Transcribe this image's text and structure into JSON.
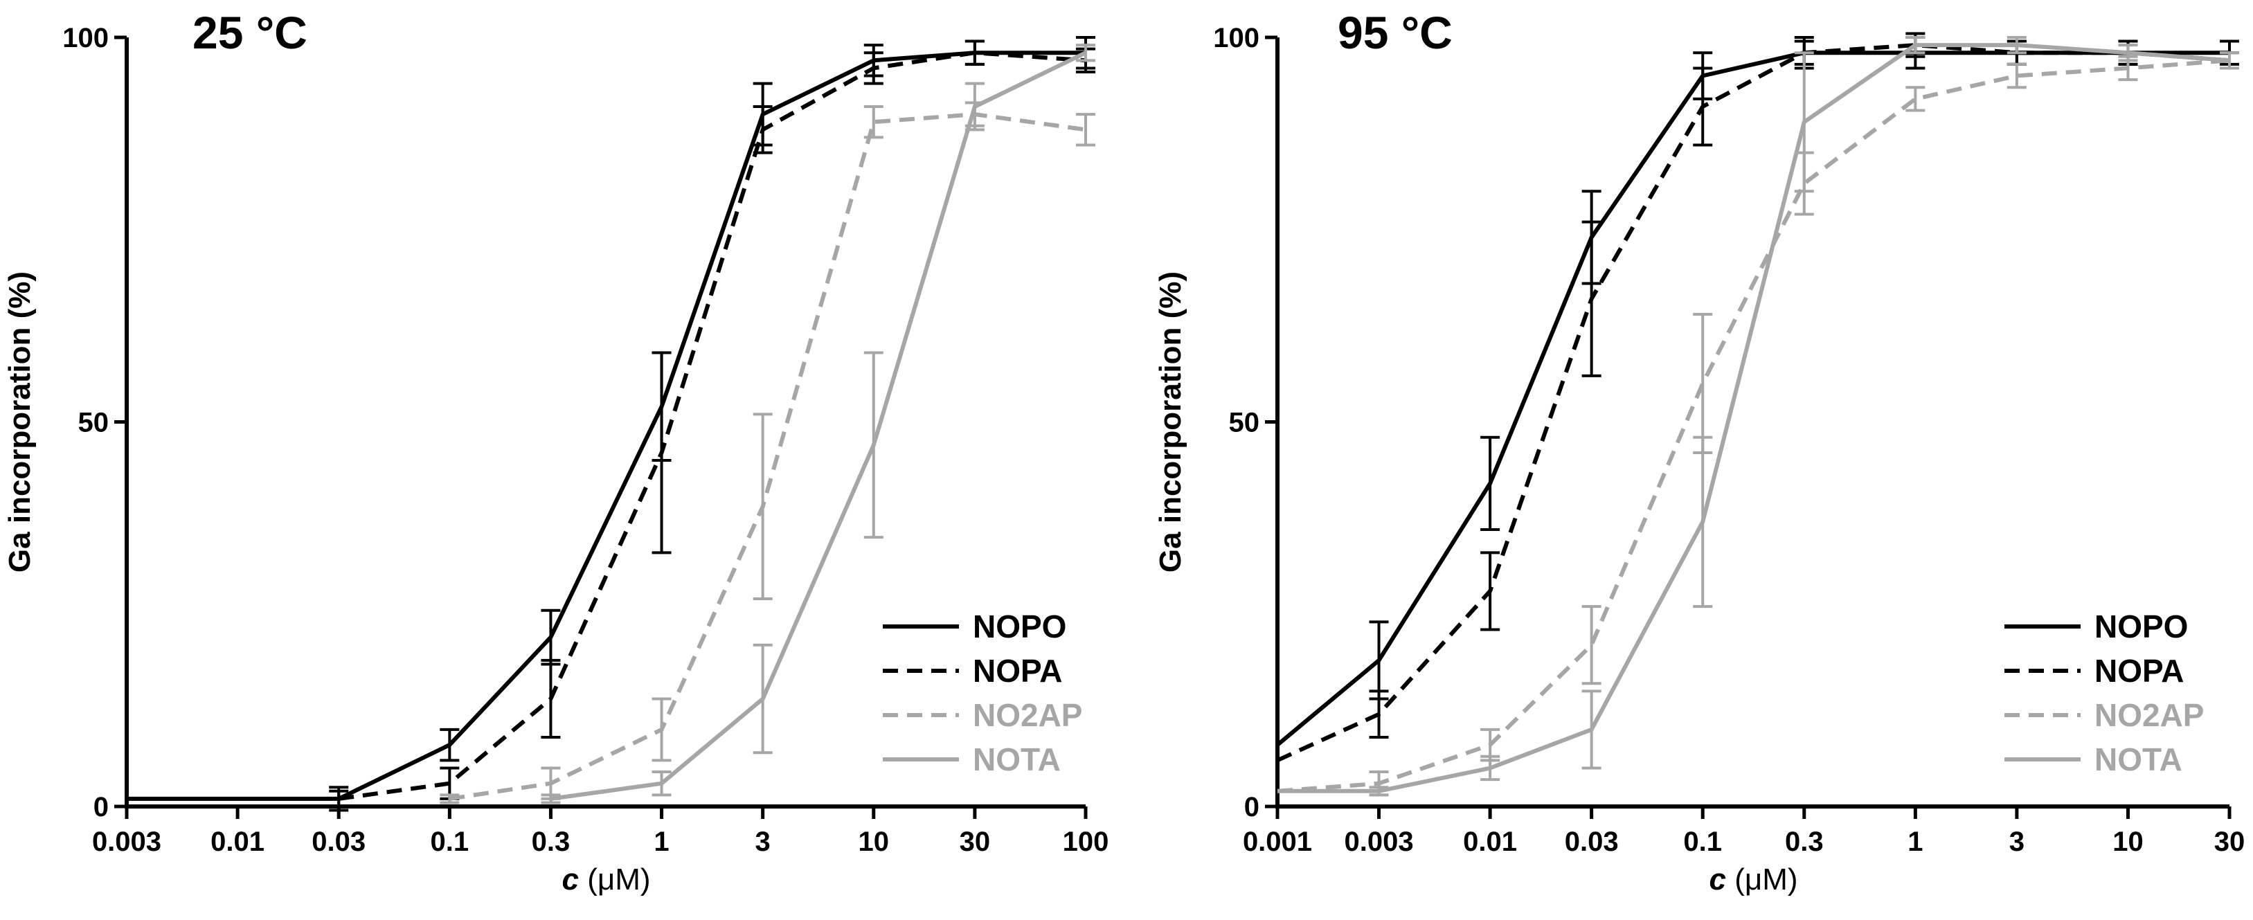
{
  "figure": {
    "colors": {
      "black": "#000000",
      "gray": "#a6a6a6"
    }
  },
  "chart_data": [
    {
      "type": "line",
      "title": "25 °C",
      "xlabel_italic": "c",
      "xlabel_rest": " (μM)",
      "ylabel": "Ga incorporation (%)",
      "xscale": "log",
      "xlim": [
        0.003,
        100
      ],
      "ylim": [
        0,
        100
      ],
      "xticks": [
        0.003,
        0.01,
        0.03,
        0.1,
        0.3,
        1,
        3,
        10,
        30,
        100
      ],
      "xtick_labels": [
        "0.003",
        "0.01",
        "0.03",
        "0.1",
        "0.3",
        "1",
        "3",
        "10",
        "30",
        "100"
      ],
      "yticks": [
        0,
        50,
        100
      ],
      "ytick_labels": [
        "0",
        "50",
        "100"
      ],
      "legend_position": "bottom-right",
      "series": [
        {
          "name": "NOPO",
          "color": "#000000",
          "dash": "solid",
          "x": [
            0.003,
            0.03,
            0.1,
            0.3,
            1,
            3,
            10,
            30,
            100
          ],
          "y": [
            1,
            1,
            8,
            22,
            52,
            90,
            97,
            98,
            98
          ],
          "err": [
            0,
            1.5,
            2,
            3.5,
            7,
            4,
            2,
            1.5,
            2
          ]
        },
        {
          "name": "NOPA",
          "color": "#000000",
          "dash": "dashed",
          "x": [
            0.03,
            0.1,
            0.3,
            1,
            3,
            10,
            30,
            100
          ],
          "y": [
            1,
            3,
            14,
            46,
            88,
            96,
            98,
            97
          ],
          "err": [
            1,
            2,
            5,
            13,
            3,
            2,
            1.5,
            1.5
          ]
        },
        {
          "name": "NO2AP",
          "color": "#a6a6a6",
          "dash": "dashed",
          "x": [
            0.1,
            0.3,
            1,
            3,
            10,
            30,
            100
          ],
          "y": [
            1,
            3,
            10,
            39,
            89,
            90,
            88
          ],
          "err": [
            0.5,
            2,
            4,
            12,
            2,
            1.5,
            2
          ]
        },
        {
          "name": "NOTA",
          "color": "#a6a6a6",
          "dash": "solid",
          "x": [
            0.3,
            1,
            3,
            10,
            30,
            100
          ],
          "y": [
            1,
            3,
            14,
            47,
            91,
            98
          ],
          "err": [
            0.5,
            1.5,
            7,
            12,
            3,
            1
          ]
        }
      ]
    },
    {
      "type": "line",
      "title": "95 °C",
      "xlabel_italic": "c",
      "xlabel_rest": " (μM)",
      "ylabel": "Ga incorporation (%)",
      "xscale": "log",
      "xlim": [
        0.001,
        30
      ],
      "ylim": [
        0,
        100
      ],
      "xticks": [
        0.001,
        0.003,
        0.01,
        0.03,
        0.1,
        0.3,
        1,
        3,
        10,
        30
      ],
      "xtick_labels": [
        "0.001",
        "0.003",
        "0.01",
        "0.03",
        "0.1",
        "0.3",
        "1",
        "3",
        "10",
        "30"
      ],
      "yticks": [
        0,
        50,
        100
      ],
      "ytick_labels": [
        "0",
        "50",
        "100"
      ],
      "legend_position": "bottom-right",
      "series": [
        {
          "name": "NOPO",
          "color": "#000000",
          "dash": "solid",
          "x": [
            0.001,
            0.003,
            0.01,
            0.03,
            0.1,
            0.3,
            1,
            3,
            10,
            30
          ],
          "y": [
            8,
            19,
            42,
            74,
            95,
            98,
            98,
            98,
            98,
            98
          ],
          "err": [
            0,
            5,
            6,
            6,
            3,
            2,
            2,
            1.5,
            1.5,
            1.5
          ]
        },
        {
          "name": "NOPA",
          "color": "#000000",
          "dash": "dashed",
          "x": [
            0.001,
            0.003,
            0.01,
            0.03,
            0.1,
            0.3,
            1,
            3,
            10,
            30
          ],
          "y": [
            6,
            12,
            28,
            66,
            91,
            98,
            99,
            98,
            98,
            97
          ],
          "err": [
            0,
            3,
            5,
            10,
            5,
            1.5,
            1.5,
            1.5,
            1.5,
            1
          ]
        },
        {
          "name": "NO2AP",
          "color": "#a6a6a6",
          "dash": "dashed",
          "x": [
            0.001,
            0.003,
            0.01,
            0.03,
            0.1,
            0.3,
            1,
            3,
            10,
            30
          ],
          "y": [
            2,
            3,
            8,
            21,
            55,
            81,
            92,
            95,
            96,
            97
          ],
          "err": [
            0,
            1.5,
            2,
            5,
            9,
            4,
            1.5,
            1.5,
            1.5,
            1
          ]
        },
        {
          "name": "NOTA",
          "color": "#a6a6a6",
          "dash": "solid",
          "x": [
            0.001,
            0.003,
            0.01,
            0.03,
            0.1,
            0.3,
            1,
            3,
            10,
            30
          ],
          "y": [
            2,
            2,
            5,
            10,
            37,
            89,
            99,
            99,
            98,
            97
          ],
          "err": [
            0,
            0.5,
            1.5,
            5,
            11,
            9,
            1,
            1,
            1,
            1
          ]
        }
      ]
    }
  ]
}
